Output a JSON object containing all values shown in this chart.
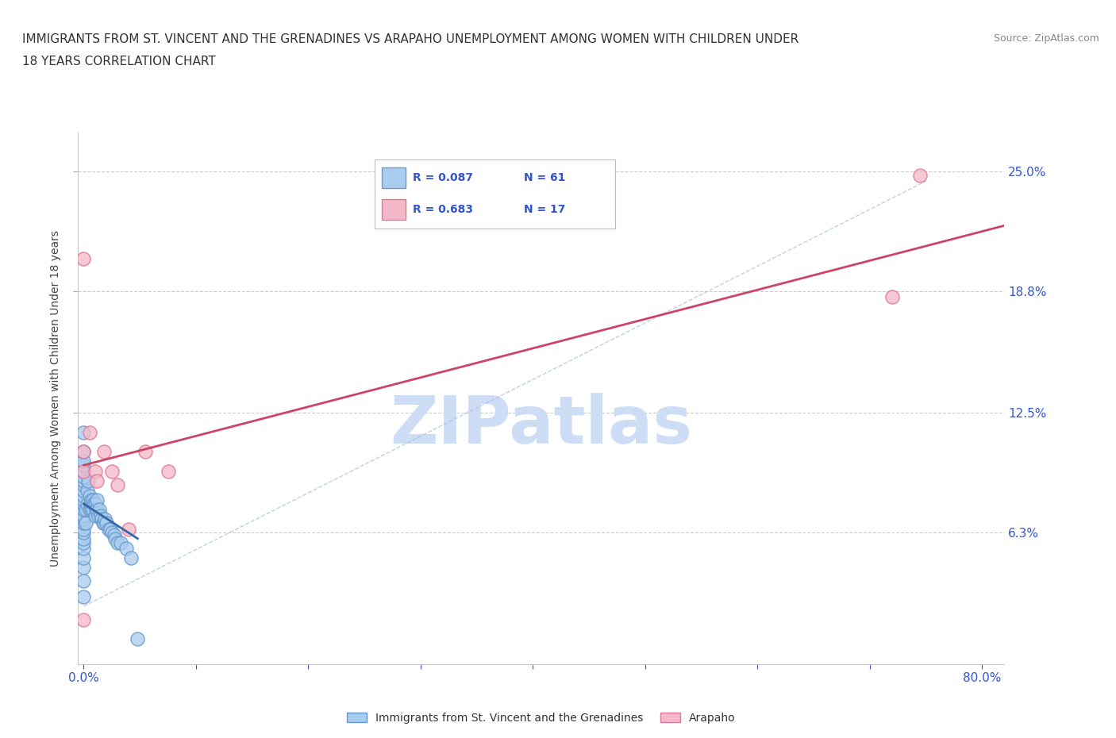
{
  "title_line1": "IMMIGRANTS FROM ST. VINCENT AND THE GRENADINES VS ARAPAHO UNEMPLOYMENT AMONG WOMEN WITH CHILDREN UNDER",
  "title_line2": "18 YEARS CORRELATION CHART",
  "source": "Source: ZipAtlas.com",
  "ylabel": "Unemployment Among Women with Children Under 18 years",
  "xlim": [
    -0.005,
    0.82
  ],
  "ylim": [
    -0.005,
    0.27
  ],
  "xtick_vals": [
    0.0,
    0.8
  ],
  "xtick_labels": [
    "0.0%",
    "80.0%"
  ],
  "ytick_vals": [
    0.063,
    0.125,
    0.188,
    0.25
  ],
  "ytick_labels": [
    "6.3%",
    "12.5%",
    "18.8%",
    "25.0%"
  ],
  "blue_color": "#aaccee",
  "blue_edge": "#6699cc",
  "pink_color": "#f5b8c8",
  "pink_edge": "#dd7799",
  "blue_trend_color": "#3366aa",
  "pink_trend_color": "#cc4466",
  "legend_R_color": "#3355cc",
  "watermark": "ZIPatlas",
  "watermark_color": "#ccddf5",
  "grid_color": "#cccccc",
  "grid_style": "--",
  "blue_scatter_x": [
    0.0,
    0.0,
    0.0,
    0.0,
    0.0,
    0.0,
    0.0,
    0.0,
    0.0,
    0.0,
    0.0,
    0.0,
    0.0,
    0.0,
    0.0,
    0.0,
    0.0,
    0.0,
    0.0,
    0.0,
    0.0,
    0.0,
    0.0,
    0.0,
    0.0,
    0.002,
    0.002,
    0.003,
    0.003,
    0.004,
    0.005,
    0.005,
    0.006,
    0.007,
    0.007,
    0.008,
    0.008,
    0.009,
    0.01,
    0.01,
    0.011,
    0.012,
    0.012,
    0.013,
    0.014,
    0.015,
    0.016,
    0.017,
    0.018,
    0.019,
    0.02,
    0.022,
    0.024,
    0.025,
    0.027,
    0.028,
    0.03,
    0.033,
    0.038,
    0.042,
    0.048
  ],
  "blue_scatter_y": [
    0.03,
    0.038,
    0.045,
    0.05,
    0.055,
    0.058,
    0.06,
    0.063,
    0.065,
    0.068,
    0.07,
    0.072,
    0.075,
    0.078,
    0.08,
    0.082,
    0.085,
    0.088,
    0.09,
    0.092,
    0.095,
    0.098,
    0.1,
    0.105,
    0.115,
    0.068,
    0.075,
    0.078,
    0.085,
    0.09,
    0.075,
    0.082,
    0.078,
    0.075,
    0.08,
    0.075,
    0.08,
    0.078,
    0.072,
    0.078,
    0.075,
    0.075,
    0.08,
    0.072,
    0.075,
    0.072,
    0.07,
    0.068,
    0.068,
    0.07,
    0.068,
    0.065,
    0.065,
    0.063,
    0.062,
    0.06,
    0.058,
    0.058,
    0.055,
    0.05,
    0.008
  ],
  "pink_scatter_x": [
    0.0,
    0.0,
    0.0,
    0.0,
    0.005,
    0.01,
    0.012,
    0.018,
    0.025,
    0.03,
    0.04,
    0.055,
    0.075,
    0.72,
    0.745
  ],
  "pink_scatter_y": [
    0.205,
    0.105,
    0.095,
    0.018,
    0.115,
    0.095,
    0.09,
    0.105,
    0.095,
    0.088,
    0.065,
    0.105,
    0.095,
    0.185,
    0.248
  ],
  "pink_trend_x0": 0.0,
  "pink_trend_x1": 0.82,
  "pink_trend_y0": 0.098,
  "pink_trend_y1": 0.222,
  "blue_trend_x0": 0.0,
  "blue_trend_x1": 0.048,
  "blue_trend_y0": 0.078,
  "blue_trend_y1": 0.06,
  "ref_line_x0": 0.0,
  "ref_line_x1": 0.75,
  "ref_line_y0": 0.025,
  "ref_line_y1": 0.245
}
